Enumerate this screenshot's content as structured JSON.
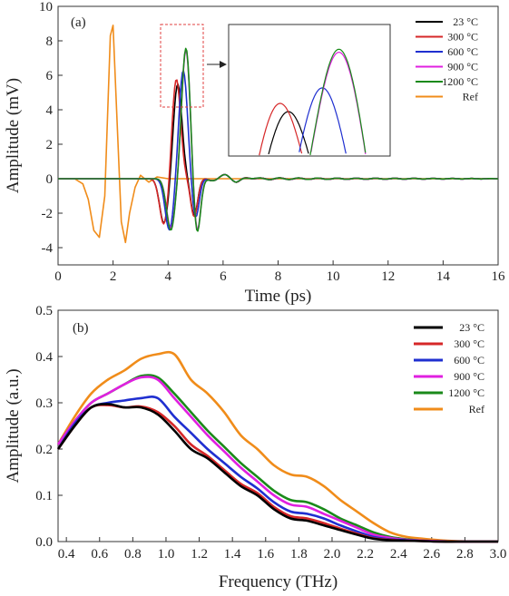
{
  "chart_data": [
    {
      "type": "line",
      "panel_label": "(a)",
      "xlabel": "Time (ps)",
      "ylabel": "Amplitude (mV)",
      "xlim": [
        0,
        16
      ],
      "ylim": [
        -5,
        10
      ],
      "xticks": [
        "0",
        "2",
        "4",
        "6",
        "8",
        "10",
        "12",
        "14",
        "16"
      ],
      "yticks": [
        "-4",
        "-2",
        "0",
        "2",
        "4",
        "6",
        "8",
        "10"
      ],
      "legend_position": "top-right",
      "inset": "zoomed view of main peaks (dashed red box around t≈3.8–5.2 ps, amplitude 4–9 mV)",
      "series": [
        {
          "name": "23 °C",
          "color": "#000000",
          "peak_time": 4.35,
          "peak_value": 5.5,
          "trough_before_time": 3.85,
          "trough_before_value": -2.6,
          "trough_after_time": 4.95,
          "trough_after_value": -2.1
        },
        {
          "name": "300 °C",
          "color": "#d62728",
          "peak_time": 4.3,
          "peak_value": 5.8,
          "trough_before_time": 3.85,
          "trough_before_value": -2.7,
          "trough_after_time": 4.95,
          "trough_after_value": -2.2
        },
        {
          "name": "600 °C",
          "color": "#1f2fd0",
          "peak_time": 4.55,
          "peak_value": 6.3,
          "trough_before_time": 4.05,
          "trough_before_value": -3.0,
          "trough_after_time": 5.0,
          "trough_after_value": -2.3
        },
        {
          "name": "900 °C",
          "color": "#e020e0",
          "peak_time": 4.65,
          "peak_value": 7.5,
          "trough_before_time": 4.1,
          "trough_before_value": -2.9,
          "trough_after_time": 5.05,
          "trough_after_value": -3.2
        },
        {
          "name": "1200 °C",
          "color": "#1a8a1a",
          "peak_time": 4.65,
          "peak_value": 7.6,
          "trough_before_time": 4.1,
          "trough_before_value": -3.0,
          "trough_after_time": 5.05,
          "trough_after_value": -3.3
        },
        {
          "name": "Ref",
          "color": "#f08c1a",
          "x": [
            0,
            0.6,
            0.9,
            1.1,
            1.3,
            1.5,
            1.7,
            1.9,
            2.0,
            2.1,
            2.3,
            2.45,
            2.6,
            2.8,
            3.0,
            3.3,
            3.6,
            4.0,
            5,
            16
          ],
          "y": [
            0,
            0,
            -0.3,
            -1.2,
            -3.0,
            -3.4,
            -1.0,
            8.3,
            8.9,
            5.0,
            -2.5,
            -3.7,
            -2.0,
            -0.5,
            0.2,
            -0.2,
            0.1,
            0,
            0,
            0
          ]
        }
      ]
    },
    {
      "type": "line",
      "panel_label": "(b)",
      "xlabel": "Frequency (THz)",
      "ylabel": "Amplitude (a.u.)",
      "xlim": [
        0.35,
        3.0
      ],
      "ylim": [
        0,
        0.5
      ],
      "xticks": [
        "0.4",
        "0.6",
        "0.8",
        "1.0",
        "1.2",
        "1.4",
        "1.6",
        "1.8",
        "2.0",
        "2.2",
        "2.4",
        "2.6",
        "2.8",
        "3.0"
      ],
      "yticks": [
        "0.0",
        "0.1",
        "0.2",
        "0.3",
        "0.4",
        "0.5"
      ],
      "legend_position": "top-right",
      "x": [
        0.35,
        0.45,
        0.55,
        0.65,
        0.75,
        0.85,
        0.95,
        1.05,
        1.15,
        1.25,
        1.35,
        1.45,
        1.55,
        1.65,
        1.75,
        1.85,
        1.95,
        2.05,
        2.15,
        2.25,
        2.35,
        2.45,
        2.55,
        2.65,
        2.75,
        2.85,
        3.0
      ],
      "series": [
        {
          "name": "23 °C",
          "color": "#000000",
          "values": [
            0.2,
            0.25,
            0.29,
            0.297,
            0.29,
            0.29,
            0.275,
            0.24,
            0.2,
            0.18,
            0.15,
            0.12,
            0.1,
            0.07,
            0.05,
            0.045,
            0.035,
            0.025,
            0.015,
            0.006,
            0.003,
            0.002,
            0.001,
            0.0,
            0.0,
            0.0,
            0.0
          ]
        },
        {
          "name": "300 °C",
          "color": "#d62728",
          "values": [
            0.2,
            0.25,
            0.29,
            0.295,
            0.29,
            0.292,
            0.28,
            0.25,
            0.21,
            0.185,
            0.155,
            0.125,
            0.105,
            0.075,
            0.055,
            0.05,
            0.04,
            0.028,
            0.017,
            0.007,
            0.004,
            0.002,
            0.001,
            0.0,
            0.0,
            0.0,
            0.0
          ]
        },
        {
          "name": "600 °C",
          "color": "#1f2fd0",
          "values": [
            0.2,
            0.255,
            0.29,
            0.3,
            0.305,
            0.31,
            0.31,
            0.27,
            0.235,
            0.2,
            0.17,
            0.14,
            0.115,
            0.085,
            0.065,
            0.06,
            0.05,
            0.035,
            0.022,
            0.01,
            0.005,
            0.003,
            0.001,
            0.0,
            0.0,
            0.0,
            0.0
          ]
        },
        {
          "name": "900 °C",
          "color": "#e020e0",
          "values": [
            0.21,
            0.26,
            0.3,
            0.32,
            0.34,
            0.355,
            0.35,
            0.31,
            0.27,
            0.23,
            0.195,
            0.16,
            0.13,
            0.1,
            0.08,
            0.075,
            0.06,
            0.045,
            0.03,
            0.015,
            0.008,
            0.004,
            0.002,
            0.001,
            0.0,
            0.0,
            0.0
          ]
        },
        {
          "name": "1200 °C",
          "color": "#1a8a1a",
          "values": [
            0.21,
            0.26,
            0.3,
            0.32,
            0.34,
            0.358,
            0.355,
            0.32,
            0.28,
            0.24,
            0.205,
            0.17,
            0.14,
            0.11,
            0.09,
            0.085,
            0.07,
            0.05,
            0.035,
            0.02,
            0.01,
            0.005,
            0.002,
            0.001,
            0.0,
            0.0,
            0.0
          ]
        },
        {
          "name": "Ref",
          "color": "#f08c1a",
          "values": [
            0.21,
            0.27,
            0.32,
            0.35,
            0.37,
            0.395,
            0.405,
            0.405,
            0.35,
            0.32,
            0.28,
            0.23,
            0.2,
            0.165,
            0.145,
            0.14,
            0.12,
            0.09,
            0.065,
            0.04,
            0.02,
            0.01,
            0.006,
            0.003,
            0.001,
            0.0,
            0.0
          ]
        }
      ]
    }
  ]
}
